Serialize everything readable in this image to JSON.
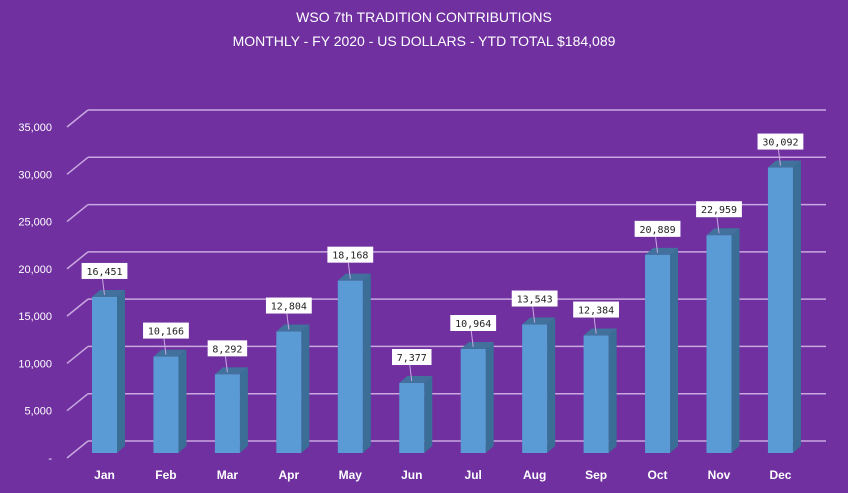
{
  "chart_data": {
    "type": "bar",
    "style": "3d-column",
    "title": "WSO 7th TRADITION CONTRIBUTIONS",
    "subtitle": "MONTHLY - FY 2020 - US DOLLARS - YTD TOTAL $184,089",
    "xlabel": "",
    "ylabel": "",
    "categories": [
      "Jan",
      "Feb",
      "Mar",
      "Apr",
      "May",
      "Jun",
      "Jul",
      "Aug",
      "Sep",
      "Oct",
      "Nov",
      "Dec"
    ],
    "values": [
      16451,
      10166,
      8292,
      12804,
      18168,
      7377,
      10964,
      13543,
      12384,
      20889,
      22959,
      30092
    ],
    "data_labels": [
      "16,451",
      "10,166",
      "8,292",
      "12,804",
      "18,168",
      "7,377",
      "10,964",
      "13,543",
      "12,384",
      "20,889",
      "22,959",
      "30,092"
    ],
    "ylim": [
      0,
      35000
    ],
    "yticks": [
      0,
      5000,
      10000,
      15000,
      20000,
      25000,
      30000,
      35000
    ],
    "ytick_labels": [
      "-",
      "5,000",
      "10,000",
      "15,000",
      "20,000",
      "25,000",
      "30,000",
      "35,000"
    ],
    "grid": true,
    "legend": "none",
    "colors": {
      "background": "#7030A0",
      "bar_front": "#5B9BD5",
      "bar_side": "#3A6E96",
      "bar_top": "#41719C",
      "gridline": "#C9A8E0",
      "text": "#ffffff",
      "label_box": "#ffffff",
      "label_text": "#222222"
    }
  }
}
